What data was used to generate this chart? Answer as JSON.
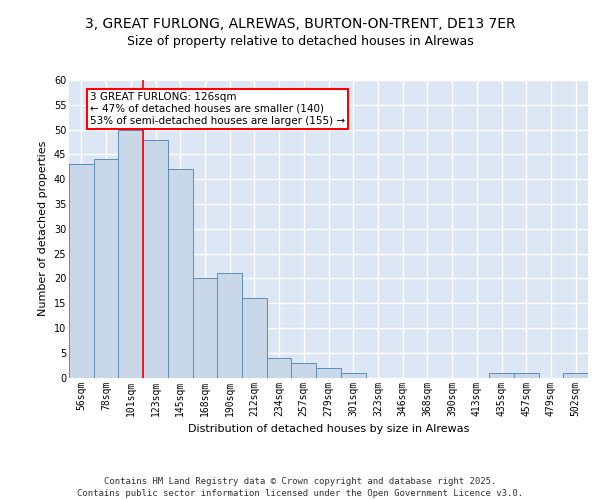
{
  "title1": "3, GREAT FURLONG, ALREWAS, BURTON-ON-TRENT, DE13 7ER",
  "title2": "Size of property relative to detached houses in Alrewas",
  "xlabel": "Distribution of detached houses by size in Alrewas",
  "ylabel": "Number of detached properties",
  "categories": [
    "56sqm",
    "78sqm",
    "101sqm",
    "123sqm",
    "145sqm",
    "168sqm",
    "190sqm",
    "212sqm",
    "234sqm",
    "257sqm",
    "279sqm",
    "301sqm",
    "323sqm",
    "346sqm",
    "368sqm",
    "390sqm",
    "413sqm",
    "435sqm",
    "457sqm",
    "479sqm",
    "502sqm"
  ],
  "values": [
    43,
    44,
    50,
    48,
    42,
    20,
    21,
    16,
    4,
    3,
    2,
    1,
    0,
    0,
    0,
    0,
    0,
    1,
    1,
    0,
    1
  ],
  "bar_color": "#c8d8e8",
  "bar_edge_color": "#5b8db8",
  "red_line_index": 3,
  "annotation_text": "3 GREAT FURLONG: 126sqm\n← 47% of detached houses are smaller (140)\n53% of semi-detached houses are larger (155) →",
  "annotation_box_color": "white",
  "annotation_box_edge": "red",
  "ylim": [
    0,
    60
  ],
  "yticks": [
    0,
    5,
    10,
    15,
    20,
    25,
    30,
    35,
    40,
    45,
    50,
    55,
    60
  ],
  "background_color": "#dce6f5",
  "grid_color": "white",
  "footer": "Contains HM Land Registry data © Crown copyright and database right 2025.\nContains public sector information licensed under the Open Government Licence v3.0.",
  "title_fontsize": 10,
  "subtitle_fontsize": 9,
  "axis_label_fontsize": 8,
  "tick_fontsize": 7,
  "footer_fontsize": 6.5
}
